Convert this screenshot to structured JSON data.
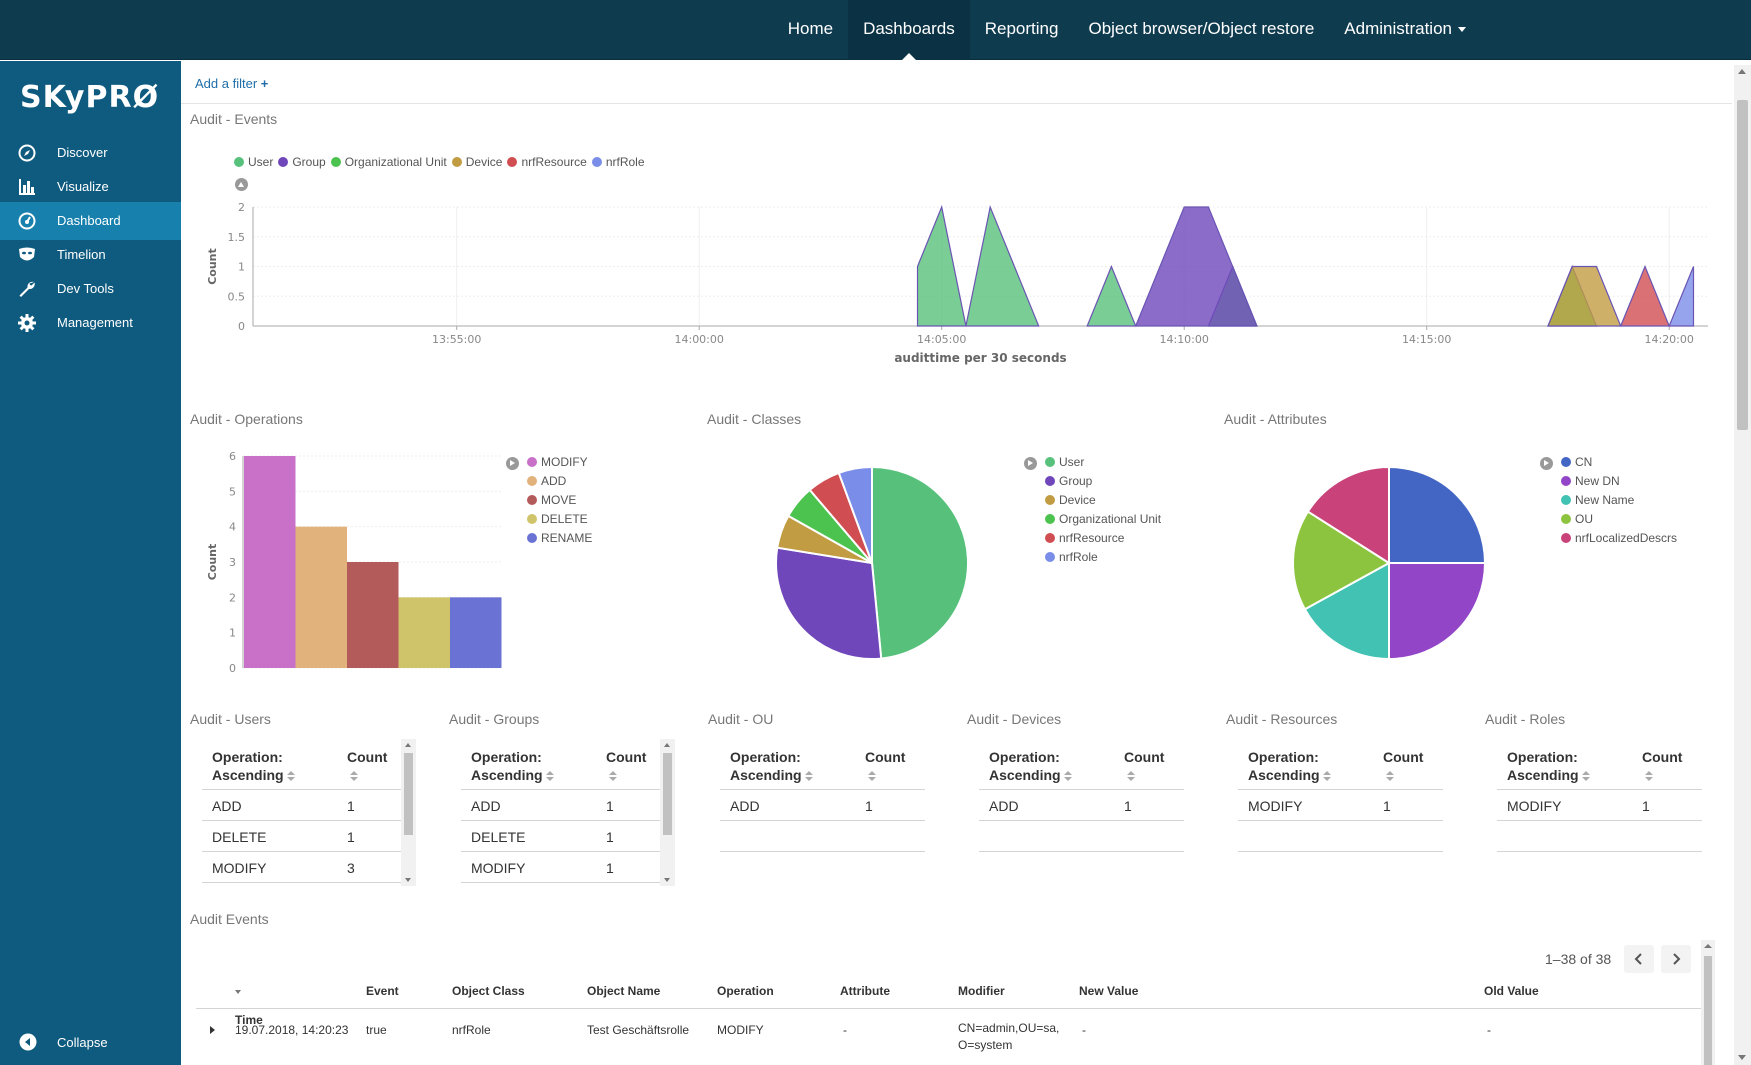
{
  "topnav": {
    "items": [
      {
        "label": "Home",
        "active": false
      },
      {
        "label": "Dashboards",
        "active": true
      },
      {
        "label": "Reporting",
        "active": false
      },
      {
        "label": "Object browser/Object restore",
        "active": false
      },
      {
        "label": "Administration",
        "active": false,
        "dropdown": true
      }
    ]
  },
  "sidebar": {
    "logo_text": "SKyPRØ",
    "items": [
      {
        "label": "Discover",
        "icon": "compass-icon",
        "active": false
      },
      {
        "label": "Visualize",
        "icon": "bar-chart-icon",
        "active": false
      },
      {
        "label": "Dashboard",
        "icon": "dashboard-icon",
        "active": true
      },
      {
        "label": "Timelion",
        "icon": "mask-icon",
        "active": false
      },
      {
        "label": "Dev Tools",
        "icon": "wrench-icon",
        "active": false
      },
      {
        "label": "Management",
        "icon": "gear-icon",
        "active": false
      }
    ],
    "collapse_label": "Collapse"
  },
  "filterbar": {
    "add_filter": "Add a filter"
  },
  "colors": {
    "topbar": "#0f3b4f",
    "sidebar": "#0f5b7f",
    "sidebar_active": "#1780ad",
    "User": "#57c17b",
    "Group": "#6f47bb",
    "Organizational Unit": "#4cc34e",
    "Device": "#c29c43",
    "nrfResource": "#d04e52",
    "nrfRole": "#7a8de8"
  },
  "panels": {
    "events_chart_title": "Audit - Events",
    "operations_title": "Audit - Operations",
    "classes_title": "Audit - Classes",
    "attributes_title": "Audit - Attributes",
    "audit_events_title": "Audit Events"
  },
  "chart_data": [
    {
      "type": "area",
      "title": "Audit - Events",
      "xlabel": "audittime per 30 seconds",
      "ylabel": "Count",
      "ylim": [
        0,
        2
      ],
      "yticks": [
        "0",
        "0.5",
        "1",
        "1.5",
        "2"
      ],
      "xticks": [
        "13:55:00",
        "14:00:00",
        "14:05:00",
        "14:10:00",
        "14:15:00",
        "14:20:00"
      ],
      "xtick_minutes": [
        0,
        5,
        10,
        15,
        20,
        25
      ],
      "xlim_minutes": [
        -4.2,
        25.8
      ],
      "legend": [
        "User",
        "Group",
        "Organizational Unit",
        "Device",
        "nrfResource",
        "nrfRole"
      ],
      "series": [
        {
          "name": "User",
          "points": [
            [
              9.5,
              0
            ],
            [
              9.5,
              1
            ],
            [
              10.0,
              2
            ],
            [
              10.5,
              0
            ],
            [
              11.0,
              2
            ],
            [
              12.0,
              0
            ]
          ]
        },
        {
          "name": "User",
          "points": [
            [
              13.0,
              0
            ],
            [
              13.5,
              1
            ],
            [
              14.0,
              0
            ]
          ]
        },
        {
          "name": "User",
          "points": [
            [
              15.5,
              0
            ],
            [
              16.0,
              1
            ],
            [
              16.5,
              0
            ]
          ]
        },
        {
          "name": "Group",
          "points": [
            [
              14.0,
              0
            ],
            [
              15.0,
              2
            ],
            [
              15.5,
              2
            ],
            [
              16.5,
              0
            ]
          ]
        },
        {
          "name": "Organizational Unit",
          "points": [
            [
              22.5,
              0
            ],
            [
              23.0,
              1
            ],
            [
              23.5,
              0
            ]
          ]
        },
        {
          "name": "Device",
          "points": [
            [
              22.5,
              0
            ],
            [
              23.0,
              1
            ],
            [
              23.5,
              1
            ],
            [
              24.0,
              0
            ]
          ]
        },
        {
          "name": "nrfResource",
          "points": [
            [
              24.0,
              0
            ],
            [
              24.5,
              1
            ],
            [
              25.0,
              0
            ]
          ]
        },
        {
          "name": "nrfRole",
          "points": [
            [
              25.0,
              0
            ],
            [
              25.5,
              1
            ],
            [
              25.5,
              0
            ]
          ]
        }
      ]
    },
    {
      "type": "bar",
      "title": "Audit - Operations",
      "ylabel": "Count",
      "ylim": [
        0,
        6
      ],
      "yticks": [
        "0",
        "1",
        "2",
        "3",
        "4",
        "5",
        "6"
      ],
      "categories": [
        "MODIFY",
        "ADD",
        "MOVE",
        "DELETE",
        "RENAME"
      ],
      "values": [
        6,
        4,
        3,
        2,
        2
      ],
      "colors": [
        "#c970c9",
        "#e1b27b",
        "#b35a5a",
        "#d0c46a",
        "#6a72d3"
      ]
    },
    {
      "type": "pie",
      "title": "Audit - Classes",
      "labels": [
        "User",
        "Group",
        "Device",
        "Organizational Unit",
        "nrfResource",
        "nrfRole"
      ],
      "values": [
        47.5,
        28.5,
        5.5,
        5.5,
        5.5,
        5.5
      ],
      "colors": [
        "#57c17b",
        "#6f47bb",
        "#c29c43",
        "#4cc34e",
        "#d04e52",
        "#7a8de8"
      ]
    },
    {
      "type": "pie",
      "title": "Audit - Attributes",
      "labels": [
        "CN",
        "New DN",
        "New Name",
        "OU",
        "nrfLocalizedDescrs"
      ],
      "values": [
        25,
        25,
        17,
        17,
        16
      ],
      "colors": [
        "#4366c4",
        "#9245c6",
        "#41c2b3",
        "#8cc43f",
        "#c9437a"
      ]
    }
  ],
  "tables": [
    {
      "title": "Audit - Users",
      "rows": [
        {
          "op": "ADD",
          "count": "1"
        },
        {
          "op": "DELETE",
          "count": "1"
        },
        {
          "op": "MODIFY",
          "count": "3"
        }
      ]
    },
    {
      "title": "Audit - Groups",
      "rows": [
        {
          "op": "ADD",
          "count": "1"
        },
        {
          "op": "DELETE",
          "count": "1"
        },
        {
          "op": "MODIFY",
          "count": "1"
        }
      ]
    },
    {
      "title": "Audit - OU",
      "rows": [
        {
          "op": "ADD",
          "count": "1"
        }
      ]
    },
    {
      "title": "Audit - Devices",
      "rows": [
        {
          "op": "ADD",
          "count": "1"
        }
      ]
    },
    {
      "title": "Audit - Resources",
      "rows": [
        {
          "op": "MODIFY",
          "count": "1"
        }
      ]
    },
    {
      "title": "Audit - Roles",
      "rows": [
        {
          "op": "MODIFY",
          "count": "1"
        }
      ]
    }
  ],
  "table_headers": {
    "op_line1": "Operation:",
    "op_line2": "Ascending",
    "count": "Count"
  },
  "audit_events": {
    "pager": "1–38 of 38",
    "columns": [
      "Time",
      "Event",
      "Object Class",
      "Object Name",
      "Operation",
      "Attribute",
      "Modifier",
      "New Value",
      "Old Value"
    ],
    "rows": [
      {
        "time": "19.07.2018, 14:20:23",
        "event": "true",
        "object_class": "nrfRole",
        "object_name": "Test Geschäftsrolle",
        "operation": "MODIFY",
        "attribute": "-",
        "modifier_line1": "CN=admin,OU=sa,",
        "modifier_line2": "O=system",
        "new_value": "-",
        "old_value": "-"
      }
    ]
  }
}
